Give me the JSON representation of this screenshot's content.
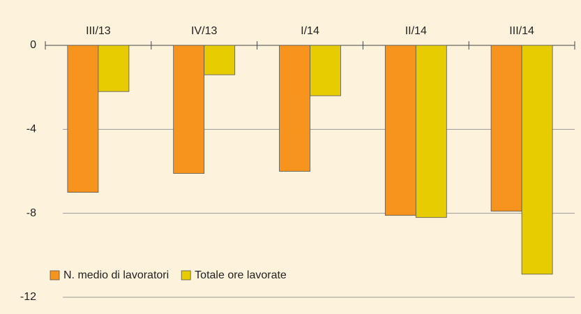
{
  "chart_data": {
    "type": "bar",
    "categories": [
      "III/13",
      "IV/13",
      "I/14",
      "II/14",
      "III/14"
    ],
    "series": [
      {
        "name": "N. medio di lavoratori",
        "color": "#f7941d",
        "values": [
          -7.0,
          -6.1,
          -6.0,
          -8.1,
          -7.9
        ]
      },
      {
        "name": "Totale ore lavorate",
        "color": "#e6cc00",
        "values": [
          -2.2,
          -1.4,
          -2.4,
          -8.2,
          -10.9
        ]
      }
    ],
    "ylim": [
      -12,
      0
    ],
    "yticks": [
      0,
      -4,
      -8,
      -12
    ],
    "grid": true,
    "legend": "bottom-left"
  }
}
